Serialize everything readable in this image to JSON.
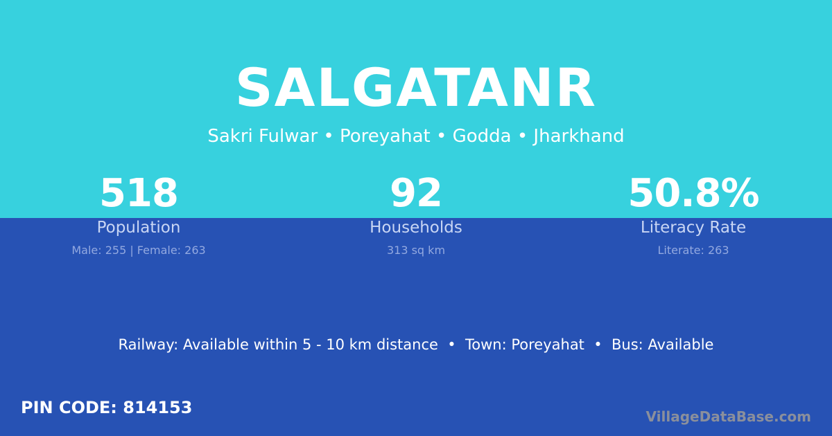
{
  "colors": {
    "top_bg": "#37d1de",
    "bottom_bg": "#2752b4"
  },
  "village": {
    "name": "SALGATANR",
    "location": "Sakri Fulwar • Poreyahat • Godda • Jharkhand"
  },
  "stats": [
    {
      "value": "518",
      "label": "Population",
      "sub": "Male: 255 | Female: 263"
    },
    {
      "value": "92",
      "label": "Households",
      "sub": "313 sq km"
    },
    {
      "value": "50.8%",
      "label": "Literacy Rate",
      "sub": "Literate: 263"
    }
  ],
  "facilities": "Railway: Available within 5 - 10 km distance  •  Town: Poreyahat  •  Bus: Available",
  "pin_code": "PIN CODE: 814153",
  "brand": "VillageDataBase.com"
}
